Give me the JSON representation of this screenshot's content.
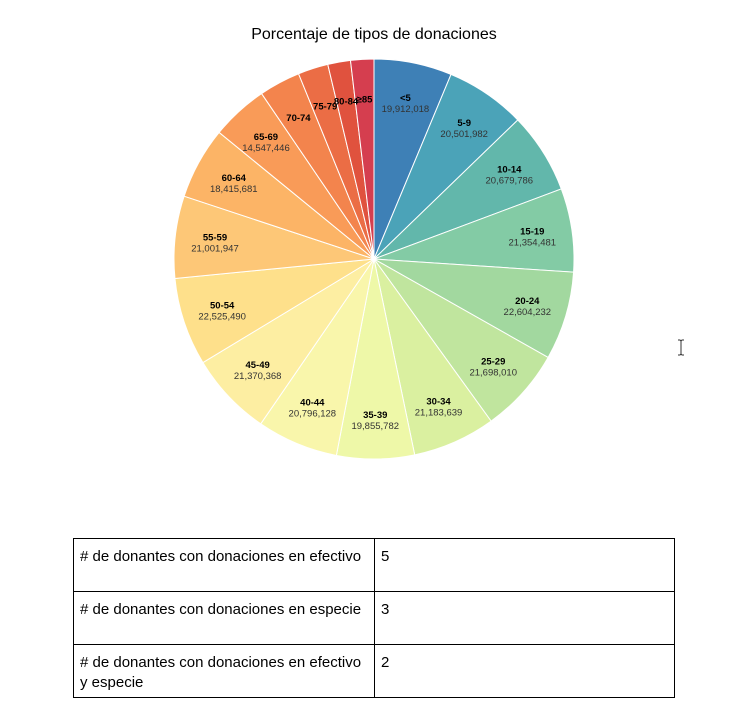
{
  "chart_data": {
    "type": "pie",
    "title": "Porcentaje de tipos de donaciones",
    "slices": [
      {
        "label": "<5",
        "value": 19912018,
        "value_text": "19,912,018",
        "color": "#3e80b6"
      },
      {
        "label": "5-9",
        "value": 20501982,
        "value_text": "20,501,982",
        "color": "#4ba3b8"
      },
      {
        "label": "10-14",
        "value": 20679786,
        "value_text": "20,679,786",
        "color": "#62b7ab"
      },
      {
        "label": "15-19",
        "value": 21354481,
        "value_text": "21,354,481",
        "color": "#83cba5"
      },
      {
        "label": "20-24",
        "value": 22604232,
        "value_text": "22,604,232",
        "color": "#a2d89f"
      },
      {
        "label": "25-29",
        "value": 21698010,
        "value_text": "21,698,010",
        "color": "#c0e59e"
      },
      {
        "label": "30-34",
        "value": 21183639,
        "value_text": "21,183,639",
        "color": "#daf0a0"
      },
      {
        "label": "35-39",
        "value": 19855782,
        "value_text": "19,855,782",
        "color": "#eef8a8"
      },
      {
        "label": "40-44",
        "value": 20796128,
        "value_text": "20,796,128",
        "color": "#f9f6ab"
      },
      {
        "label": "45-49",
        "value": 21370368,
        "value_text": "21,370,368",
        "color": "#fdeea2"
      },
      {
        "label": "50-54",
        "value": 22525490,
        "value_text": "22,525,490",
        "color": "#fee08b"
      },
      {
        "label": "55-59",
        "value": 21001947,
        "value_text": "21,001,947",
        "color": "#fdc777"
      },
      {
        "label": "60-64",
        "value": 18415681,
        "value_text": "18,415,681",
        "color": "#fcb466"
      },
      {
        "label": "65-69",
        "value": 14547446,
        "value_text": "14,547,446",
        "color": "#f99b58"
      },
      {
        "label": "70-74",
        "value": 10587721,
        "value_text": "",
        "color": "#f3844d"
      },
      {
        "label": "75-79",
        "value": 7730129,
        "value_text": "",
        "color": "#eb6d45"
      },
      {
        "label": "80-84",
        "value": 5811429,
        "value_text": "",
        "color": "#e0523e"
      },
      {
        "label": "≥85",
        "value": 5938752,
        "value_text": "",
        "color": "#d53e4f"
      }
    ]
  },
  "table": {
    "rows": [
      {
        "label": "# de donantes con donaciones en efectivo",
        "value": "5"
      },
      {
        "label": "# de donantes con donaciones en especie",
        "value": "3"
      },
      {
        "label": "# de donantes con donaciones en efectivo y especie",
        "value": "2"
      }
    ]
  },
  "cursor": {
    "icon": "text-cursor-icon"
  }
}
